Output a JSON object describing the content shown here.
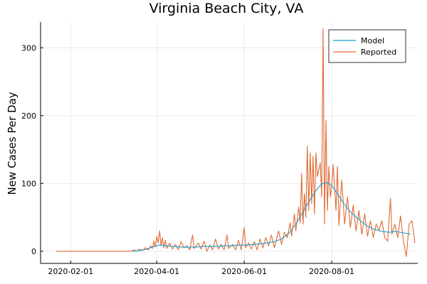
{
  "chart_data": {
    "type": "line",
    "title": "Virginia Beach City, VA",
    "xlabel": "",
    "ylabel": "New Cases Per Day",
    "x_axis": {
      "type": "date",
      "range": [
        "2020-01-11",
        "2020-09-30"
      ],
      "ticks": [
        "2020-02-01",
        "2020-04-01",
        "2020-06-01",
        "2020-08-01"
      ]
    },
    "y_axis": {
      "range": [
        -18,
        338
      ],
      "ticks": [
        0,
        100,
        200,
        300
      ]
    },
    "grid": true,
    "legend_position": "top-right",
    "series": [
      {
        "name": "Model",
        "color": "#1a9fcf",
        "points": [
          [
            "2020-03-15",
            0
          ],
          [
            "2020-03-20",
            1
          ],
          [
            "2020-03-25",
            3
          ],
          [
            "2020-03-30",
            7
          ],
          [
            "2020-04-03",
            9
          ],
          [
            "2020-04-08",
            8
          ],
          [
            "2020-04-13",
            7
          ],
          [
            "2020-04-18",
            6
          ],
          [
            "2020-04-23",
            6
          ],
          [
            "2020-04-28",
            6
          ],
          [
            "2020-05-03",
            7
          ],
          [
            "2020-05-08",
            7
          ],
          [
            "2020-05-13",
            7
          ],
          [
            "2020-05-18",
            8
          ],
          [
            "2020-05-23",
            8
          ],
          [
            "2020-05-28",
            9
          ],
          [
            "2020-06-02",
            9
          ],
          [
            "2020-06-07",
            10
          ],
          [
            "2020-06-12",
            11
          ],
          [
            "2020-06-17",
            12
          ],
          [
            "2020-06-22",
            14
          ],
          [
            "2020-06-27",
            18
          ],
          [
            "2020-07-02",
            26
          ],
          [
            "2020-07-07",
            40
          ],
          [
            "2020-07-12",
            58
          ],
          [
            "2020-07-17",
            76
          ],
          [
            "2020-07-20",
            86
          ],
          [
            "2020-07-23",
            95
          ],
          [
            "2020-07-26",
            100
          ],
          [
            "2020-07-29",
            101
          ],
          [
            "2020-08-01",
            97
          ],
          [
            "2020-08-04",
            88
          ],
          [
            "2020-08-08",
            75
          ],
          [
            "2020-08-12",
            63
          ],
          [
            "2020-08-16",
            54
          ],
          [
            "2020-08-21",
            45
          ],
          [
            "2020-08-26",
            37
          ],
          [
            "2020-08-31",
            32
          ],
          [
            "2020-09-05",
            29
          ],
          [
            "2020-09-10",
            28
          ],
          [
            "2020-09-15",
            29
          ],
          [
            "2020-09-20",
            27
          ],
          [
            "2020-09-25",
            25
          ]
        ]
      },
      {
        "name": "Reported",
        "color": "#e26a34",
        "points": [
          [
            "2020-01-22",
            0
          ],
          [
            "2020-02-15",
            0
          ],
          [
            "2020-03-10",
            0
          ],
          [
            "2020-03-14",
            0
          ],
          [
            "2020-03-16",
            2
          ],
          [
            "2020-03-18",
            0
          ],
          [
            "2020-03-20",
            3
          ],
          [
            "2020-03-22",
            1
          ],
          [
            "2020-03-24",
            5
          ],
          [
            "2020-03-26",
            2
          ],
          [
            "2020-03-28",
            8
          ],
          [
            "2020-03-29",
            4
          ],
          [
            "2020-03-30",
            15
          ],
          [
            "2020-03-31",
            6
          ],
          [
            "2020-04-01",
            22
          ],
          [
            "2020-04-02",
            12
          ],
          [
            "2020-04-03",
            30
          ],
          [
            "2020-04-04",
            8
          ],
          [
            "2020-04-05",
            20
          ],
          [
            "2020-04-06",
            5
          ],
          [
            "2020-04-07",
            16
          ],
          [
            "2020-04-08",
            4
          ],
          [
            "2020-04-10",
            12
          ],
          [
            "2020-04-12",
            3
          ],
          [
            "2020-04-14",
            10
          ],
          [
            "2020-04-16",
            2
          ],
          [
            "2020-04-18",
            14
          ],
          [
            "2020-04-20",
            5
          ],
          [
            "2020-04-22",
            8
          ],
          [
            "2020-04-24",
            2
          ],
          [
            "2020-04-26",
            24
          ],
          [
            "2020-04-27",
            4
          ],
          [
            "2020-04-30",
            12
          ],
          [
            "2020-05-02",
            3
          ],
          [
            "2020-05-04",
            15
          ],
          [
            "2020-05-06",
            0
          ],
          [
            "2020-05-08",
            9
          ],
          [
            "2020-05-10",
            2
          ],
          [
            "2020-05-12",
            18
          ],
          [
            "2020-05-14",
            3
          ],
          [
            "2020-05-16",
            10
          ],
          [
            "2020-05-18",
            2
          ],
          [
            "2020-05-20",
            24
          ],
          [
            "2020-05-21",
            4
          ],
          [
            "2020-05-24",
            10
          ],
          [
            "2020-05-26",
            2
          ],
          [
            "2020-05-28",
            16
          ],
          [
            "2020-05-30",
            2
          ],
          [
            "2020-06-01",
            35
          ],
          [
            "2020-06-02",
            5
          ],
          [
            "2020-06-04",
            12
          ],
          [
            "2020-06-06",
            3
          ],
          [
            "2020-06-08",
            14
          ],
          [
            "2020-06-10",
            2
          ],
          [
            "2020-06-12",
            18
          ],
          [
            "2020-06-14",
            5
          ],
          [
            "2020-06-16",
            20
          ],
          [
            "2020-06-18",
            8
          ],
          [
            "2020-06-20",
            24
          ],
          [
            "2020-06-22",
            5
          ],
          [
            "2020-06-25",
            30
          ],
          [
            "2020-06-27",
            10
          ],
          [
            "2020-06-29",
            28
          ],
          [
            "2020-07-01",
            20
          ],
          [
            "2020-07-03",
            42
          ],
          [
            "2020-07-04",
            22
          ],
          [
            "2020-07-06",
            55
          ],
          [
            "2020-07-07",
            30
          ],
          [
            "2020-07-09",
            65
          ],
          [
            "2020-07-10",
            42
          ],
          [
            "2020-07-11",
            115
          ],
          [
            "2020-07-12",
            40
          ],
          [
            "2020-07-13",
            85
          ],
          [
            "2020-07-14",
            50
          ],
          [
            "2020-07-15",
            155
          ],
          [
            "2020-07-16",
            60
          ],
          [
            "2020-07-17",
            145
          ],
          [
            "2020-07-18",
            70
          ],
          [
            "2020-07-19",
            140
          ],
          [
            "2020-07-20",
            55
          ],
          [
            "2020-07-21",
            145
          ],
          [
            "2020-07-22",
            110
          ],
          [
            "2020-07-24",
            130
          ],
          [
            "2020-07-25",
            80
          ],
          [
            "2020-07-26",
            328
          ],
          [
            "2020-07-27",
            40
          ],
          [
            "2020-07-28",
            193
          ],
          [
            "2020-07-29",
            60
          ],
          [
            "2020-07-30",
            125
          ],
          [
            "2020-07-31",
            80
          ],
          [
            "2020-08-01",
            95
          ],
          [
            "2020-08-02",
            128
          ],
          [
            "2020-08-04",
            60
          ],
          [
            "2020-08-05",
            125
          ],
          [
            "2020-08-06",
            38
          ],
          [
            "2020-08-08",
            105
          ],
          [
            "2020-08-10",
            40
          ],
          [
            "2020-08-12",
            80
          ],
          [
            "2020-08-14",
            35
          ],
          [
            "2020-08-16",
            68
          ],
          [
            "2020-08-18",
            30
          ],
          [
            "2020-08-20",
            60
          ],
          [
            "2020-08-22",
            25
          ],
          [
            "2020-08-24",
            55
          ],
          [
            "2020-08-26",
            22
          ],
          [
            "2020-08-28",
            45
          ],
          [
            "2020-08-30",
            20
          ],
          [
            "2020-09-01",
            40
          ],
          [
            "2020-09-03",
            30
          ],
          [
            "2020-09-05",
            45
          ],
          [
            "2020-09-07",
            20
          ],
          [
            "2020-09-09",
            15
          ],
          [
            "2020-09-11",
            78
          ],
          [
            "2020-09-12",
            25
          ],
          [
            "2020-09-14",
            40
          ],
          [
            "2020-09-16",
            20
          ],
          [
            "2020-09-18",
            52
          ],
          [
            "2020-09-20",
            15
          ],
          [
            "2020-09-22",
            -8
          ],
          [
            "2020-09-24",
            40
          ],
          [
            "2020-09-26",
            45
          ],
          [
            "2020-09-28",
            12
          ]
        ]
      }
    ]
  }
}
